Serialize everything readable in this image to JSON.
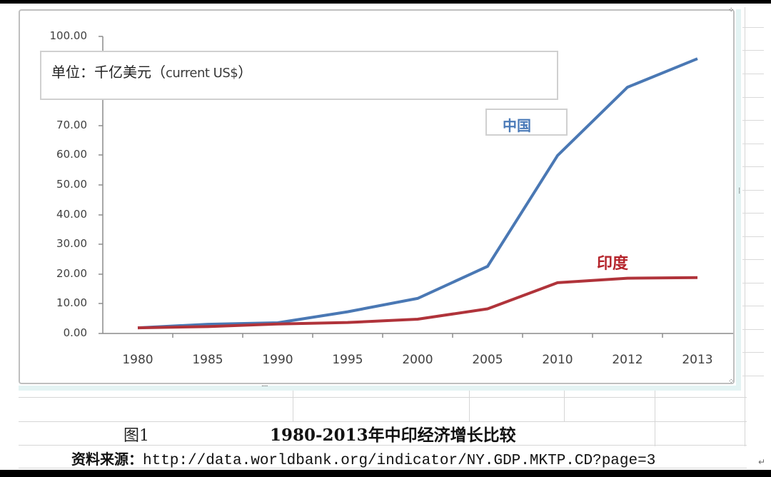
{
  "unit_label": {
    "cn": "单位：千亿美元（",
    "en": "current US$",
    "close": "）"
  },
  "series_labels": {
    "china": "中国",
    "india": "印度"
  },
  "y_ticks": [
    "100.00",
    "70.00",
    "60.00",
    "50.00",
    "40.00",
    "30.00",
    "20.00",
    "10.00",
    "0.00"
  ],
  "x_ticks": [
    "1980",
    "1985",
    "1990",
    "1995",
    "2000",
    "2005",
    "2010",
    "2012",
    "2013"
  ],
  "caption": {
    "figure": "图1",
    "title": "1980-2013年中印经济增长比较"
  },
  "source": {
    "label": "资料来源：",
    "url": "http://data.worldbank.org/indicator/NY.GDP.MKTP.CD?page=3",
    "return_mark": "↵"
  },
  "colors": {
    "china": "#4a78b4",
    "india": "#b0333a"
  },
  "chart_data": {
    "type": "line",
    "title": "1980-2013年中印经济增长比较",
    "subtitle": "单位：千亿美元（current US$）",
    "xlabel": "",
    "ylabel": "千亿美元 (current US$)",
    "categories": [
      "1980",
      "1985",
      "1990",
      "1995",
      "2000",
      "2005",
      "2010",
      "2012",
      "2013"
    ],
    "series": [
      {
        "name": "中国",
        "color": "#4a78b4",
        "values": [
          1.9,
          3.1,
          3.6,
          7.3,
          11.8,
          22.6,
          59.9,
          82.9,
          92.5
        ]
      },
      {
        "name": "印度",
        "color": "#b0333a",
        "values": [
          1.9,
          2.3,
          3.2,
          3.7,
          4.8,
          8.3,
          17.1,
          18.6,
          18.8
        ]
      }
    ],
    "ylim": [
      0,
      100
    ],
    "y_tick_values": [
      0,
      10,
      20,
      30,
      40,
      50,
      60,
      70,
      100
    ],
    "grid": false,
    "legend": "inline labels",
    "source": "http://data.worldbank.org/indicator/NY.GDP.MKTP.CD?page=3"
  }
}
